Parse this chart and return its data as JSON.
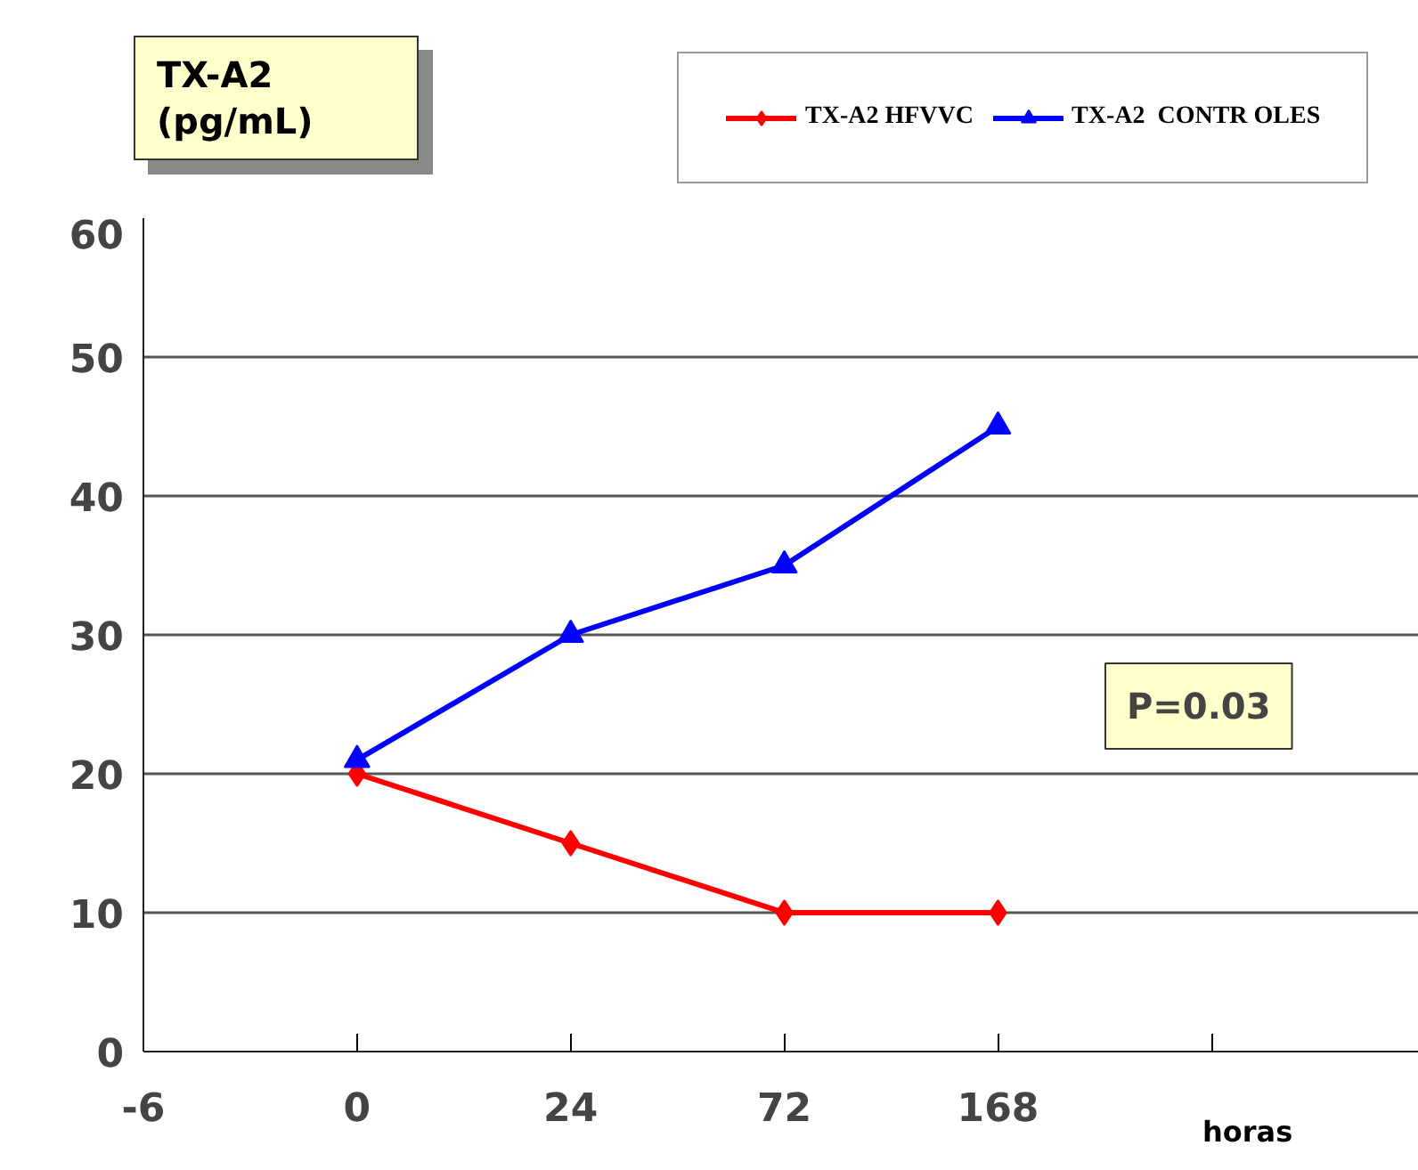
{
  "chart_data": {
    "type": "line",
    "ylabel": "TX-A2 (pg/mL)",
    "xlabel": "horas",
    "categories": [
      "-6",
      "0",
      "24",
      "72",
      "168",
      null
    ],
    "series": [
      {
        "name": "TX-A2 HFVVC",
        "color": "#ff0000",
        "marker": "diamond",
        "values": [
          null,
          20,
          15,
          10,
          10,
          null
        ]
      },
      {
        "name": "TX-A2  CONTR OLES",
        "color": "#0000ff",
        "marker": "triangle",
        "values": [
          null,
          21,
          30,
          35,
          45,
          null
        ]
      }
    ],
    "ylim": [
      0,
      60
    ],
    "yticks": [
      0,
      10,
      20,
      30,
      40,
      50,
      60
    ],
    "grid": "y",
    "legend": "top",
    "line_style": "solid",
    "annotations": [
      "P=0.03"
    ]
  }
}
